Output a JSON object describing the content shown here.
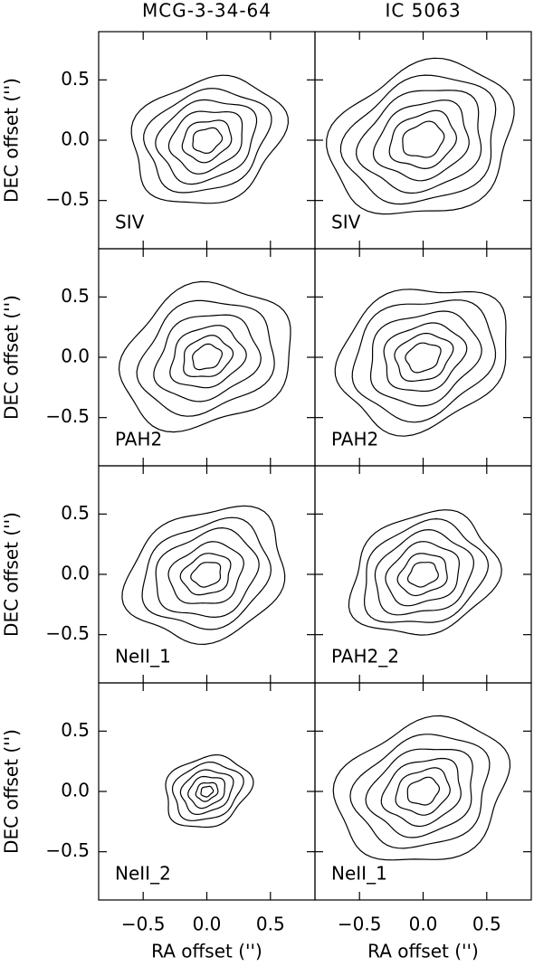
{
  "chart_data": [
    {
      "type": "contour",
      "title": "MCG-3-34-64",
      "label": "SIV",
      "ylabel": "DEC offset ('')",
      "xlim": [
        -0.85,
        0.85
      ],
      "ylim": [
        -0.9,
        0.9
      ],
      "yticks": [
        {
          "value": -0.5,
          "label": "−0.5"
        },
        {
          "value": 0,
          "label": "0.0"
        },
        0.5
      ],
      "contours": [
        0.62,
        0.5,
        0.4,
        0.3,
        0.2,
        0.12
      ]
    },
    {
      "type": "contour",
      "title": "IC 5063",
      "label": "SIV",
      "xlim": [
        -0.85,
        0.85
      ],
      "ylim": [
        -0.9,
        0.9
      ],
      "contours": [
        0.75,
        0.62,
        0.5,
        0.38,
        0.27,
        0.17
      ]
    },
    {
      "type": "contour",
      "label": "PAH2",
      "ylabel": "DEC offset ('')",
      "xlim": [
        -0.85,
        0.85
      ],
      "ylim": [
        -0.9,
        0.9
      ],
      "yticks": [
        {
          "value": -0.5,
          "label": "−0.5"
        },
        {
          "value": 0,
          "label": "0.0"
        },
        0.5
      ],
      "contours": [
        0.7,
        0.55,
        0.42,
        0.3,
        0.2,
        0.12
      ]
    },
    {
      "type": "contour",
      "label": "PAH2",
      "xlim": [
        -0.85,
        0.85
      ],
      "ylim": [
        -0.9,
        0.9
      ],
      "contours": [
        0.7,
        0.58,
        0.45,
        0.33,
        0.23,
        0.14
      ]
    },
    {
      "type": "contour",
      "label": "NeII_1",
      "ylabel": "DEC offset ('')",
      "xlim": [
        -0.85,
        0.85
      ],
      "ylim": [
        -0.9,
        0.9
      ],
      "yticks": [
        {
          "value": -0.5,
          "label": "−0.5"
        },
        {
          "value": 0,
          "label": "0.0"
        },
        0.5
      ],
      "contours": [
        0.65,
        0.52,
        0.42,
        0.3,
        0.2,
        0.12
      ]
    },
    {
      "type": "contour",
      "label": "PAH2_2",
      "xlim": [
        -0.85,
        0.85
      ],
      "ylim": [
        -0.9,
        0.9
      ],
      "contours": [
        0.6,
        0.5,
        0.4,
        0.3,
        0.2,
        0.12
      ]
    },
    {
      "type": "contour",
      "label": "NeII_2",
      "ylabel": "DEC offset ('')",
      "xlabel": "RA offset ('')",
      "xlim": [
        -0.85,
        0.85
      ],
      "ylim": [
        -0.9,
        0.9
      ],
      "yticks": [
        {
          "value": -0.5,
          "label": "−0.5"
        },
        {
          "value": 0,
          "label": "0.0"
        },
        0.5
      ],
      "xticks": [
        {
          "value": -0.5,
          "label": "−0.5"
        },
        {
          "value": 0,
          "label": "0.0"
        },
        0.5
      ],
      "contours": [
        0.35,
        0.28,
        0.21,
        0.15,
        0.09,
        0.05
      ]
    },
    {
      "type": "contour",
      "label": "NeII_1",
      "xlabel": "RA offset ('')",
      "xlim": [
        -0.85,
        0.85
      ],
      "ylim": [
        -0.9,
        0.9
      ],
      "xticks": [
        {
          "value": -0.5,
          "label": "−0.5"
        },
        {
          "value": 0,
          "label": "0.0"
        },
        0.5
      ],
      "contours": [
        0.7,
        0.55,
        0.43,
        0.32,
        0.22,
        0.13
      ]
    }
  ]
}
